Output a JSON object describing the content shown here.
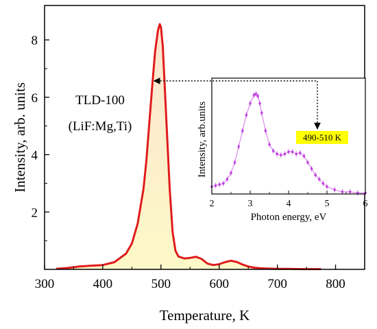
{
  "chart_data": [
    {
      "type": "area",
      "xlabel": "Temperature, K",
      "ylabel": "Intensity, arb. units",
      "xlim": [
        300,
        850
      ],
      "ylim": [
        0,
        9.2
      ],
      "x_ticks": [
        300,
        400,
        500,
        600,
        700,
        800
      ],
      "y_ticks": [
        2,
        4,
        6,
        8
      ],
      "annotation_lines": [
        "TLD-100",
        "(LiF:Mg,Ti)"
      ],
      "line_color": "#e01b1b",
      "fill_colors": [
        "#fbe3d0",
        "#fdf9c8"
      ],
      "grid": false,
      "series": [
        {
          "x": [
            320,
            340,
            360,
            380,
            400,
            420,
            440,
            450,
            460,
            470,
            475,
            480,
            485,
            490,
            495,
            498,
            500,
            503,
            506,
            510,
            515,
            520,
            525,
            530,
            540,
            550,
            560,
            570,
            580,
            590,
            600,
            610,
            620,
            630,
            640,
            650,
            660,
            670,
            680,
            700,
            720,
            740,
            760,
            775
          ],
          "y": [
            0.02,
            0.05,
            0.1,
            0.13,
            0.15,
            0.25,
            0.55,
            0.9,
            1.6,
            2.8,
            3.8,
            5.1,
            6.4,
            7.6,
            8.35,
            8.55,
            8.45,
            7.8,
            6.6,
            4.9,
            2.8,
            1.3,
            0.65,
            0.45,
            0.38,
            0.4,
            0.44,
            0.36,
            0.2,
            0.15,
            0.18,
            0.25,
            0.3,
            0.26,
            0.17,
            0.1,
            0.06,
            0.04,
            0.03,
            0.02,
            0.02,
            0.01,
            0.01,
            0.01
          ]
        }
      ]
    },
    {
      "type": "scatter",
      "xlabel": "Photon energy, eV",
      "ylabel": "Intensity, arb.units",
      "xlim": [
        2,
        6
      ],
      "ylim": [
        0,
        1.1
      ],
      "x_ticks": [
        2,
        3,
        4,
        5,
        6
      ],
      "temperature_range_label": "490-510 K",
      "label_background": "#ffff00",
      "marker_color": "#c040e0",
      "arrow_from_temperature": 500,
      "grid": false,
      "series": [
        {
          "x": [
            2.0,
            2.1,
            2.2,
            2.3,
            2.4,
            2.5,
            2.6,
            2.7,
            2.8,
            2.9,
            3.0,
            3.1,
            3.15,
            3.2,
            3.25,
            3.3,
            3.4,
            3.5,
            3.6,
            3.7,
            3.8,
            3.9,
            4.0,
            4.1,
            4.2,
            4.3,
            4.4,
            4.5,
            4.6,
            4.7,
            4.8,
            4.9,
            5.0,
            5.2,
            5.4,
            5.6,
            5.8,
            6.0
          ],
          "y": [
            0.07,
            0.08,
            0.09,
            0.1,
            0.14,
            0.2,
            0.3,
            0.45,
            0.6,
            0.75,
            0.86,
            0.94,
            0.95,
            0.93,
            0.86,
            0.77,
            0.6,
            0.47,
            0.41,
            0.38,
            0.37,
            0.38,
            0.4,
            0.4,
            0.38,
            0.39,
            0.36,
            0.3,
            0.24,
            0.18,
            0.14,
            0.1,
            0.07,
            0.04,
            0.02,
            0.02,
            0.01,
            0.01
          ]
        }
      ]
    }
  ]
}
